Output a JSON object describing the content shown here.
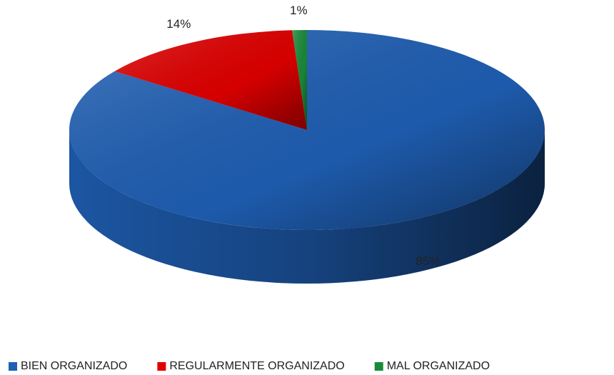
{
  "chart_data": {
    "type": "pie3d",
    "categories": [
      "BIEN ORGANIZADO",
      "REGULARMENTE ORGANIZADO",
      "MAL ORGANIZADO"
    ],
    "values": [
      85,
      14,
      1
    ],
    "value_labels": [
      "85%",
      "14%",
      "1%"
    ],
    "colors": [
      "#1f5fb4",
      "#e00000",
      "#1a8a3a"
    ],
    "legend": "bottom"
  }
}
